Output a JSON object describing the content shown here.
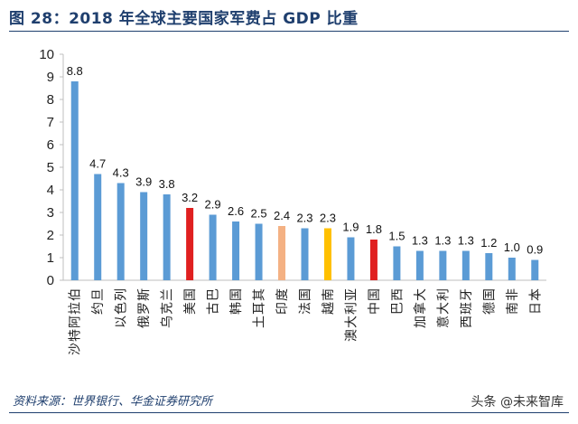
{
  "title": "图 28：2018 年全球主要国家军费占 GDP 比重",
  "source": "资料来源：世界银行、华金证券研究所",
  "watermark": "头条 @未来智库",
  "colors": {
    "default_bar": "#5b9bd5",
    "title": "#1f3f6e"
  },
  "chart_data": {
    "type": "bar",
    "title": "",
    "xlabel": "",
    "ylabel": "",
    "ylim": [
      0,
      10
    ],
    "yticks": [
      0,
      1,
      2,
      3,
      4,
      5,
      6,
      7,
      8,
      9,
      10
    ],
    "grid": false,
    "legend": "none",
    "categories": [
      "沙特阿拉伯",
      "约旦",
      "以色列",
      "俄罗斯",
      "乌克兰",
      "美国",
      "古巴",
      "韩国",
      "土耳其",
      "印度",
      "法国",
      "越南",
      "澳大利亚",
      "中国",
      "巴西",
      "加拿大",
      "意大利",
      "西班牙",
      "德国",
      "南非",
      "日本"
    ],
    "values": [
      8.8,
      4.7,
      4.3,
      3.9,
      3.8,
      3.2,
      2.9,
      2.6,
      2.5,
      2.4,
      2.3,
      2.3,
      1.9,
      1.8,
      1.5,
      1.3,
      1.3,
      1.3,
      1.2,
      1.0,
      0.9
    ],
    "value_labels": [
      "8.8",
      "4.7",
      "4.3",
      "3.9",
      "3.8",
      "3.2",
      "2.9",
      "2.6",
      "2.5",
      "2.4",
      "2.3",
      "2.3",
      "1.9",
      "1.8",
      "1.5",
      "1.3",
      "1.3",
      "1.3",
      "1.2",
      "1.0",
      "0.9"
    ],
    "bar_colors": [
      "#5b9bd5",
      "#5b9bd5",
      "#5b9bd5",
      "#5b9bd5",
      "#5b9bd5",
      "#e02020",
      "#5b9bd5",
      "#5b9bd5",
      "#5b9bd5",
      "#f4b183",
      "#5b9bd5",
      "#ffc000",
      "#5b9bd5",
      "#e02020",
      "#5b9bd5",
      "#5b9bd5",
      "#5b9bd5",
      "#5b9bd5",
      "#5b9bd5",
      "#5b9bd5",
      "#5b9bd5"
    ]
  }
}
